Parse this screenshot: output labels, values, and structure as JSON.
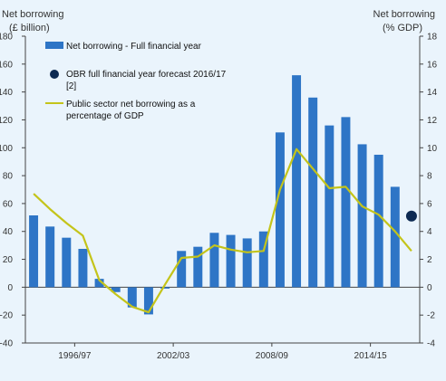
{
  "colors": {
    "background": "#eaf4fc",
    "bar": "#2e75c6",
    "line": "#c4c41a",
    "marker": "#0d2a52",
    "axis": "#444444"
  },
  "chart_data": {
    "type": "bar",
    "left_axis": {
      "title_line1": "Net borrowing",
      "title_line2": "(£ billion)",
      "ylim": [
        -40,
        180
      ],
      "ticks": [
        -40,
        -20,
        0,
        20,
        40,
        60,
        80,
        100,
        120,
        140,
        160,
        180
      ]
    },
    "right_axis": {
      "title_line1": "Net borrowing",
      "title_line2": "(% GDP)",
      "ylim": [
        -4,
        18
      ],
      "ticks": [
        -4,
        -2,
        0,
        2,
        4,
        6,
        8,
        10,
        12,
        14,
        16,
        18
      ]
    },
    "x_tick_labels": [
      "1996/97",
      "2002/03",
      "2008/09",
      "2014/15"
    ],
    "x_tick_label_indices": [
      2.5,
      8.5,
      14.5,
      20.5
    ],
    "categories_count": 24,
    "series": [
      {
        "name": "Net borrowing - Full financial year",
        "kind": "bar",
        "axis": "left",
        "values": [
          51.5,
          43.5,
          35.5,
          27.5,
          6,
          -3.5,
          -14.5,
          -19.5,
          -1,
          26,
          29,
          39,
          37.5,
          35,
          40,
          111,
          152,
          136,
          116,
          122,
          102.5,
          95,
          72,
          null
        ]
      },
      {
        "name": "Public sector net borrowing as a percentage of GDP",
        "name_line1": "Public sector net borrowing as a",
        "name_line2": "percentage of GDP",
        "kind": "line",
        "axis": "right",
        "values": [
          6.7,
          5.6,
          4.6,
          3.7,
          0.5,
          -0.5,
          -1.4,
          -1.8,
          0.2,
          2.1,
          2.2,
          3.0,
          2.7,
          2.5,
          2.6,
          7.0,
          9.9,
          8.5,
          7.1,
          7.2,
          5.8,
          5.2,
          4.0,
          2.6
        ]
      },
      {
        "name": "OBR full financial year forecast 2016/17 [2]",
        "name_line1": "OBR full financial year forecast 2016/17",
        "name_line2": "[2]",
        "kind": "point",
        "axis": "left",
        "index": 23,
        "value": 51
      }
    ],
    "legend_position": "top-left"
  }
}
